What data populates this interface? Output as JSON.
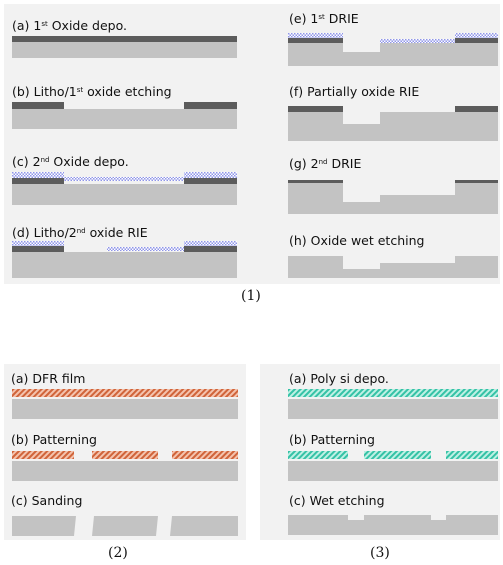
{
  "colors": {
    "silicon": "#c3c3c3",
    "oxide": "#5c5c5c",
    "oxide_dotted": "#8f95e8",
    "dfr": "#d0643a",
    "poly_si": "#35c2a6",
    "panel_bg": "#f2f2f2"
  },
  "figure1": {
    "caption": "(1)",
    "steps": [
      {
        "prefix": "(a) 1",
        "sup": "st",
        "suffix": " Oxide depo."
      },
      {
        "prefix": "(b) Litho/1",
        "sup": "st",
        "suffix": " oxide etching"
      },
      {
        "prefix": "(c) 2",
        "sup": "nd",
        "suffix": " Oxide depo."
      },
      {
        "prefix": "(d) Litho/2",
        "sup": "nd",
        "suffix": " oxide RIE"
      },
      {
        "prefix": "(e) 1",
        "sup": "st",
        "suffix": " DRIE"
      },
      {
        "prefix": "(f) Partially oxide RIE",
        "sup": "",
        "suffix": ""
      },
      {
        "prefix": "(g) 2",
        "sup": "nd",
        "suffix": " DRIE"
      },
      {
        "prefix": "(h) Oxide wet etching",
        "sup": "",
        "suffix": ""
      }
    ]
  },
  "figure2": {
    "caption": "(2)",
    "steps": [
      "(a) DFR film",
      "(b) Patterning",
      "(c) Sanding"
    ]
  },
  "figure3": {
    "caption": "(3)",
    "steps": [
      "(a) Poly si depo.",
      "(b) Patterning",
      "(c) Wet etching"
    ]
  }
}
